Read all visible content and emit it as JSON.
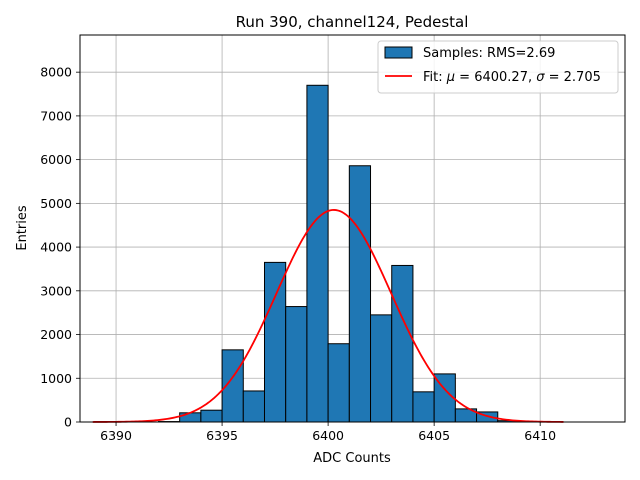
{
  "chart_data": {
    "type": "bar",
    "title": "Run 390, channel124, Pedestal",
    "xlabel": "ADC Counts",
    "ylabel": "Entries",
    "xlim": [
      6388.3,
      6414.0
    ],
    "ylim": [
      0,
      8850
    ],
    "xticks": [
      6390,
      6395,
      6400,
      6405,
      6410
    ],
    "yticks": [
      0,
      1000,
      2000,
      3000,
      4000,
      5000,
      6000,
      7000,
      8000
    ],
    "grid": true,
    "legend_position": "upper right",
    "histogram": {
      "name": "Samples: RMS=2.69",
      "bin_width": 1,
      "bins": [
        {
          "x": 6392.5,
          "value": 10
        },
        {
          "x": 6393.5,
          "value": 210
        },
        {
          "x": 6394.5,
          "value": 270
        },
        {
          "x": 6395.5,
          "value": 1650
        },
        {
          "x": 6396.5,
          "value": 710
        },
        {
          "x": 6397.5,
          "value": 3650
        },
        {
          "x": 6398.5,
          "value": 2640
        },
        {
          "x": 6399.5,
          "value": 7700
        },
        {
          "x": 6400.5,
          "value": 1790
        },
        {
          "x": 6401.5,
          "value": 5860
        },
        {
          "x": 6402.5,
          "value": 2450
        },
        {
          "x": 6403.5,
          "value": 3580
        },
        {
          "x": 6404.5,
          "value": 690
        },
        {
          "x": 6405.5,
          "value": 1100
        },
        {
          "x": 6406.5,
          "value": 300
        },
        {
          "x": 6407.5,
          "value": 230
        },
        {
          "x": 6408.5,
          "value": 30
        }
      ],
      "fill_color": "#1f77b4",
      "edge_color": "#000000"
    },
    "fit": {
      "name": "Fit: μ = 6400.27, σ = 2.705",
      "label_prefix": "Fit: ",
      "label_mu": "μ",
      "label_mid": " = 6400.27, ",
      "label_sigma": "σ",
      "label_suffix": " = 2.705",
      "mu": 6400.27,
      "sigma": 2.705,
      "amplitude": 4850,
      "x_range": [
        6388.9,
        6411.1
      ],
      "color": "#ff0000"
    }
  }
}
